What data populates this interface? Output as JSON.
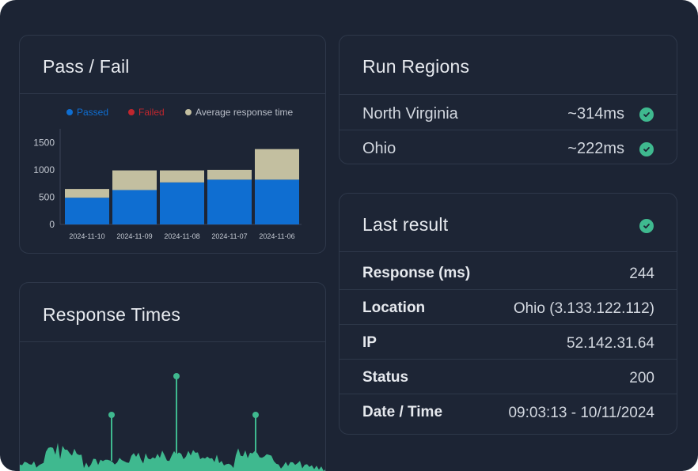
{
  "pass_fail": {
    "title": "Pass / Fail",
    "legend": [
      {
        "label": "Passed",
        "color": "#0f6ed1"
      },
      {
        "label": "Failed",
        "color": "#c0262e"
      },
      {
        "label": "Average response time",
        "color": "#c3bfa0"
      }
    ]
  },
  "chart_data": {
    "type": "bar",
    "stacked": true,
    "categories": [
      "2024-11-10",
      "2024-11-09",
      "2024-11-08",
      "2024-11-07",
      "2024-11-06"
    ],
    "series": [
      {
        "name": "Passed",
        "values": [
          490,
          630,
          770,
          820,
          820
        ],
        "color": "#0f6ed1"
      },
      {
        "name": "Failed",
        "values": [
          0,
          0,
          0,
          0,
          0
        ],
        "color": "#c0262e"
      },
      {
        "name": "Average response time",
        "values": [
          160,
          360,
          220,
          180,
          560
        ],
        "color": "#c3bfa0"
      }
    ],
    "yticks": [
      0,
      500,
      1000,
      1500
    ],
    "ylim": [
      0,
      1650
    ],
    "grid": false,
    "legend_position": "top"
  },
  "response_times": {
    "title": "Response Times",
    "color": "#3fb98f"
  },
  "run_regions": {
    "title": "Run Regions",
    "items": [
      {
        "name": "North Virginia",
        "latency": "~314ms",
        "status": "check-circle-icon"
      },
      {
        "name": "Ohio",
        "latency": "~222ms",
        "status": "check-circle-icon"
      }
    ]
  },
  "last_result": {
    "title": "Last result",
    "status_icon": "check-circle-icon",
    "rows": [
      {
        "key": "Response (ms)",
        "value": "244"
      },
      {
        "key": "Location",
        "value": "Ohio (3.133.122.112)"
      },
      {
        "key": "IP",
        "value": "52.142.31.64"
      },
      {
        "key": "Status",
        "value": "200"
      },
      {
        "key": "Date / Time",
        "value": "09:03:13 - 10/11/2024"
      }
    ]
  }
}
